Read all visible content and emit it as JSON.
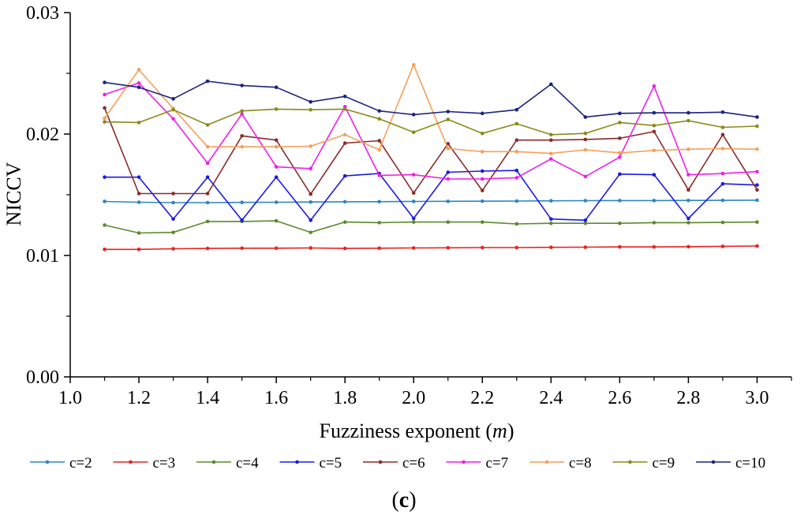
{
  "chart_data": {
    "type": "line",
    "title": "",
    "xlabel": "Fuzziness exponent (",
    "xlabel_italic": "m",
    "xlabel_suffix": ")",
    "ylabel": "NICCV",
    "xlim": [
      1.0,
      3.1
    ],
    "ylim": [
      0.0,
      0.03
    ],
    "xticks": [
      1.0,
      1.2,
      1.4,
      1.6,
      1.8,
      2.0,
      2.2,
      2.4,
      2.6,
      2.8,
      3.0
    ],
    "xtick_labels": [
      "1.0",
      "1.2",
      "1.4",
      "1.6",
      "1.8",
      "2.0",
      "2.2",
      "2.4",
      "2.6",
      "2.8",
      "3.0"
    ],
    "yticks": [
      0.0,
      0.01,
      0.02,
      0.03
    ],
    "ytick_labels": [
      "0.00",
      "0.01",
      "0.02",
      "0.03"
    ],
    "grid": false,
    "legend_position": "bottom",
    "x": [
      1.1,
      1.2,
      1.3,
      1.4,
      1.5,
      1.6,
      1.7,
      1.8,
      1.9,
      2.0,
      2.1,
      2.2,
      2.3,
      2.4,
      2.5,
      2.6,
      2.7,
      2.8,
      2.9,
      3.0
    ],
    "series": [
      {
        "name": "c=2",
        "color": "#2e86c1",
        "values": [
          0.01445,
          0.01438,
          0.01435,
          0.01435,
          0.01437,
          0.01438,
          0.0144,
          0.01442,
          0.01443,
          0.01445,
          0.01446,
          0.01447,
          0.01448,
          0.0145,
          0.01451,
          0.01452,
          0.01452,
          0.01453,
          0.01454,
          0.01455
        ]
      },
      {
        "name": "c=3",
        "color": "#e8221f",
        "values": [
          0.0105,
          0.0105,
          0.01055,
          0.01058,
          0.0106,
          0.0106,
          0.01062,
          0.01058,
          0.0106,
          0.01062,
          0.01063,
          0.01065,
          0.01065,
          0.01067,
          0.01068,
          0.0107,
          0.0107,
          0.01072,
          0.01075,
          0.01078
        ]
      },
      {
        "name": "c=4",
        "color": "#5a8a2a",
        "values": [
          0.0125,
          0.01185,
          0.0119,
          0.0128,
          0.0128,
          0.01285,
          0.0119,
          0.01275,
          0.0127,
          0.01275,
          0.01275,
          0.01275,
          0.0126,
          0.01265,
          0.01265,
          0.01265,
          0.0127,
          0.0127,
          0.01272,
          0.01275
        ]
      },
      {
        "name": "c=5",
        "color": "#1a1ae6",
        "values": [
          0.01645,
          0.01645,
          0.013,
          0.01645,
          0.0129,
          0.01645,
          0.0129,
          0.01655,
          0.01675,
          0.01305,
          0.01685,
          0.01695,
          0.017,
          0.013,
          0.0129,
          0.0167,
          0.01665,
          0.01305,
          0.0159,
          0.0158
        ]
      },
      {
        "name": "c=6",
        "color": "#8b2a2a",
        "values": [
          0.02215,
          0.0151,
          0.0151,
          0.0151,
          0.01985,
          0.0195,
          0.01505,
          0.01925,
          0.01945,
          0.01515,
          0.0192,
          0.01535,
          0.0195,
          0.0195,
          0.01955,
          0.01965,
          0.0202,
          0.0154,
          0.01995,
          0.0154
        ]
      },
      {
        "name": "c=7",
        "color": "#f21de6",
        "values": [
          0.02325,
          0.0242,
          0.02125,
          0.0176,
          0.02165,
          0.0173,
          0.01715,
          0.02225,
          0.0166,
          0.01665,
          0.0163,
          0.0163,
          0.0164,
          0.01795,
          0.0165,
          0.0181,
          0.02395,
          0.01665,
          0.01675,
          0.0169
        ]
      },
      {
        "name": "c=8",
        "color": "#f5a05a",
        "values": [
          0.0213,
          0.0253,
          0.0221,
          0.01895,
          0.01895,
          0.01895,
          0.019,
          0.01995,
          0.0187,
          0.0257,
          0.0188,
          0.01855,
          0.01855,
          0.0184,
          0.0187,
          0.01845,
          0.01865,
          0.01875,
          0.0188,
          0.01875
        ]
      },
      {
        "name": "c=9",
        "color": "#8a8a1a",
        "values": [
          0.021,
          0.02095,
          0.022,
          0.02075,
          0.0219,
          0.02205,
          0.022,
          0.02205,
          0.02125,
          0.02015,
          0.0212,
          0.02005,
          0.02085,
          0.01995,
          0.02005,
          0.02095,
          0.0207,
          0.0211,
          0.02055,
          0.02065
        ]
      },
      {
        "name": "c=10",
        "color": "#1a237e",
        "values": [
          0.02425,
          0.02385,
          0.0229,
          0.02435,
          0.024,
          0.02385,
          0.02265,
          0.0231,
          0.0219,
          0.0216,
          0.02185,
          0.0217,
          0.022,
          0.0241,
          0.0214,
          0.0217,
          0.02175,
          0.02175,
          0.0218,
          0.0214
        ]
      }
    ]
  },
  "caption": {
    "open": "(",
    "letter": "c",
    "close": ")"
  }
}
